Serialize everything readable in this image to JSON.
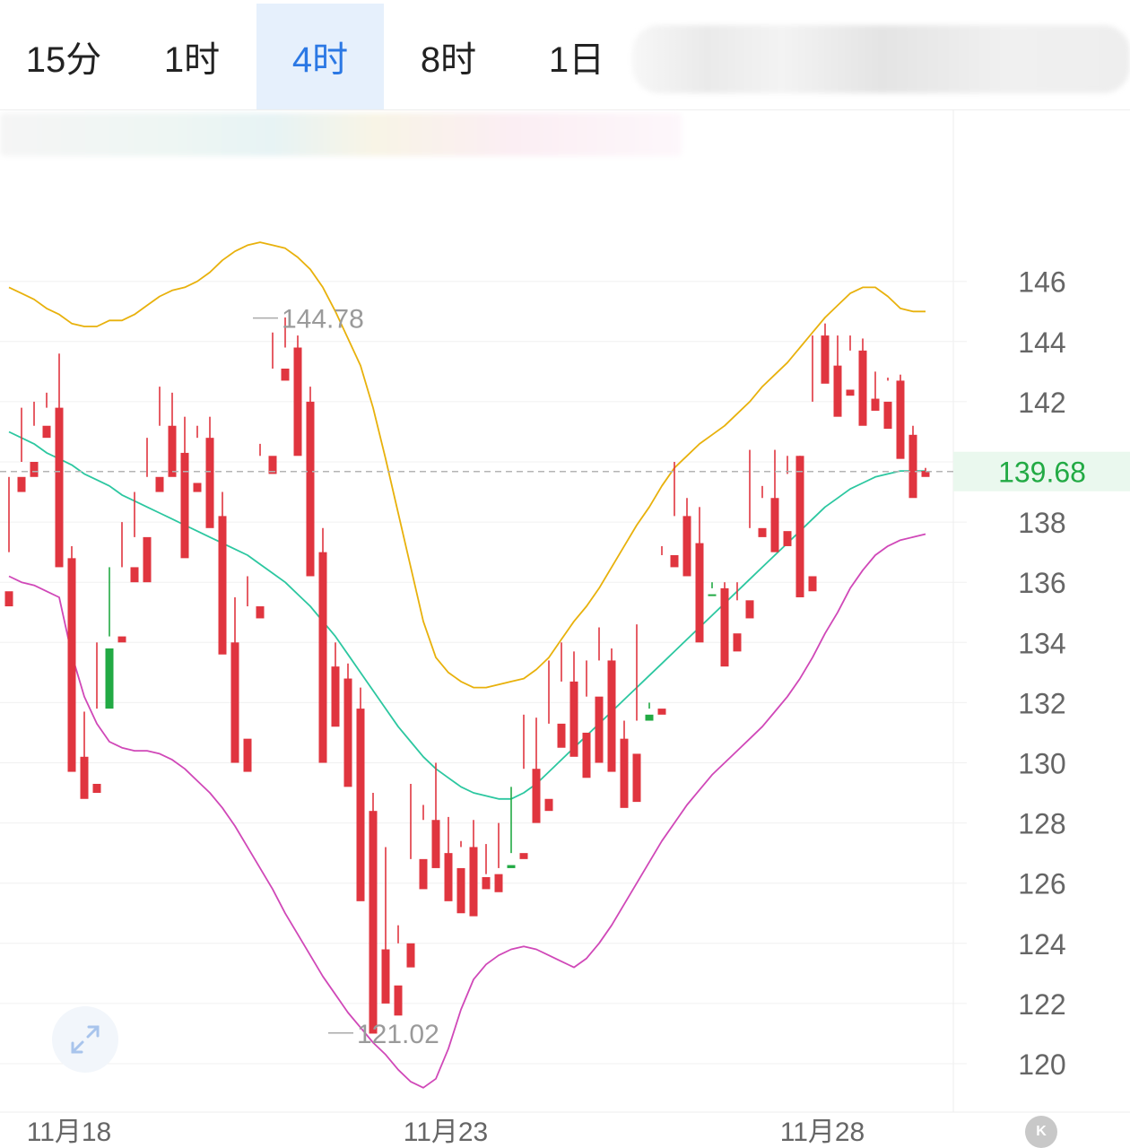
{
  "tabs": [
    {
      "label": "15分",
      "active": false
    },
    {
      "label": "1时",
      "active": false
    },
    {
      "label": "4时",
      "active": true
    },
    {
      "label": "8时",
      "active": false
    },
    {
      "label": "1日",
      "active": false
    }
  ],
  "colors": {
    "up": "#22aa44",
    "down": "#e0353f",
    "upper_band": "#e8b10c",
    "middle_band": "#2cc7a0",
    "lower_band": "#d048b8",
    "grid": "#f0f0f0",
    "axis_text": "#666666",
    "current_price": "#22aa44",
    "current_price_bg": "#eaf8ee",
    "active_tab": "#2b78e4"
  },
  "icons": {
    "expand": "expand-arrows-icon",
    "kline_badge": "k-icon"
  },
  "kline_badge": "K",
  "chart_data": {
    "type": "candlestick",
    "ylim": [
      119,
      148
    ],
    "y_ticks": [
      146,
      144,
      142,
      140,
      138,
      136,
      134,
      132,
      130,
      128,
      126,
      124,
      122,
      120
    ],
    "y_tick_labels_hidden": [
      140
    ],
    "x_labels": [
      {
        "label": "11月18",
        "index": 3
      },
      {
        "label": "11月23",
        "index": 33
      },
      {
        "label": "11月28",
        "index": 63
      }
    ],
    "current_price": 139.68,
    "current_price_label": "139.68",
    "high_marker": {
      "label": "144.78",
      "value": 144.78,
      "index": 19
    },
    "low_marker": {
      "label": "121.02",
      "value": 121.02,
      "index": 25
    },
    "candles": [
      [
        135.7,
        139.5,
        137.0,
        135.2
      ],
      [
        139.5,
        141.8,
        140.0,
        139.0
      ],
      [
        140.0,
        142.0,
        141.2,
        139.5
      ],
      [
        141.2,
        142.3,
        141.8,
        140.8
      ],
      [
        141.8,
        143.6,
        137.0,
        136.5
      ],
      [
        136.8,
        137.2,
        130.2,
        129.7
      ],
      [
        130.2,
        131.7,
        129.3,
        128.8
      ],
      [
        129.3,
        134.0,
        131.8,
        129.0
      ],
      [
        131.8,
        136.5,
        134.2,
        133.8
      ],
      [
        134.2,
        138.0,
        136.5,
        134.0
      ],
      [
        136.5,
        139.0,
        137.5,
        136.0
      ],
      [
        137.5,
        140.8,
        139.5,
        136.0
      ],
      [
        139.5,
        142.5,
        141.2,
        139.0
      ],
      [
        141.2,
        142.3,
        140.3,
        139.5
      ],
      [
        140.3,
        141.5,
        139.3,
        136.8
      ],
      [
        139.3,
        141.2,
        140.8,
        139.0
      ],
      [
        140.8,
        141.5,
        138.2,
        137.8
      ],
      [
        138.2,
        139.0,
        134.0,
        133.6
      ],
      [
        134.0,
        135.5,
        130.8,
        130.0
      ],
      [
        130.8,
        136.2,
        135.2,
        129.7
      ],
      [
        135.2,
        140.6,
        140.2,
        134.8
      ],
      [
        140.2,
        144.3,
        143.1,
        139.6
      ],
      [
        143.1,
        144.8,
        143.8,
        142.7
      ],
      [
        143.8,
        144.2,
        142.0,
        140.2
      ],
      [
        142.0,
        142.5,
        137.0,
        136.2
      ],
      [
        137.0,
        137.8,
        133.2,
        130.0
      ],
      [
        133.2,
        134.0,
        132.8,
        131.2
      ],
      [
        132.8,
        133.3,
        131.8,
        129.2
      ],
      [
        131.8,
        132.5,
        128.4,
        125.4
      ],
      [
        128.4,
        129.0,
        123.8,
        121.0
      ],
      [
        123.8,
        127.2,
        122.6,
        122.0
      ],
      [
        122.6,
        124.6,
        124.0,
        121.6
      ],
      [
        124.0,
        129.3,
        126.8,
        123.2
      ],
      [
        126.8,
        128.6,
        128.1,
        125.8
      ],
      [
        128.1,
        130.0,
        127.0,
        126.5
      ],
      [
        127.0,
        128.2,
        126.5,
        125.4
      ],
      [
        126.5,
        127.4,
        127.2,
        125.0
      ],
      [
        127.2,
        128.1,
        126.2,
        124.9
      ],
      [
        126.2,
        127.3,
        126.3,
        125.8
      ],
      [
        126.3,
        128.0,
        126.5,
        125.7
      ],
      [
        126.5,
        129.2,
        127.0,
        126.6
      ],
      [
        127.0,
        131.6,
        129.8,
        126.8
      ],
      [
        129.8,
        131.5,
        128.8,
        128.0
      ],
      [
        128.8,
        133.4,
        131.3,
        128.4
      ],
      [
        131.3,
        134.0,
        132.7,
        130.5
      ],
      [
        132.7,
        133.7,
        131.0,
        130.2
      ],
      [
        131.0,
        133.4,
        132.2,
        129.5
      ],
      [
        132.2,
        134.5,
        133.4,
        130.0
      ],
      [
        133.4,
        133.8,
        130.8,
        129.7
      ],
      [
        130.8,
        131.4,
        130.3,
        128.5
      ],
      [
        130.3,
        134.6,
        131.4,
        128.7
      ],
      [
        131.4,
        132.0,
        131.8,
        131.6
      ],
      [
        131.8,
        137.2,
        136.9,
        131.6
      ],
      [
        136.9,
        140.0,
        138.2,
        136.5
      ],
      [
        138.2,
        138.8,
        137.3,
        136.2
      ],
      [
        137.3,
        138.5,
        135.6,
        134.0
      ],
      [
        135.6,
        136.0,
        135.8,
        135.6
      ],
      [
        135.8,
        136.0,
        134.3,
        133.2
      ],
      [
        134.3,
        136.0,
        135.4,
        133.7
      ],
      [
        135.4,
        140.4,
        137.8,
        134.8
      ],
      [
        137.8,
        139.2,
        138.8,
        137.5
      ],
      [
        138.8,
        140.4,
        137.7,
        137.0
      ],
      [
        137.7,
        139.6,
        140.2,
        137.2
      ],
      [
        140.2,
        140.2,
        136.2,
        135.5
      ],
      [
        136.2,
        142.0,
        144.2,
        135.7
      ],
      [
        144.2,
        144.6,
        143.2,
        142.6
      ],
      [
        143.2,
        144.2,
        142.4,
        141.5
      ],
      [
        142.4,
        144.2,
        143.7,
        142.2
      ],
      [
        143.7,
        144.1,
        142.1,
        141.2
      ],
      [
        142.1,
        143.0,
        142.0,
        141.7
      ],
      [
        142.0,
        142.8,
        142.7,
        141.1
      ],
      [
        142.7,
        142.9,
        140.9,
        140.1
      ],
      [
        140.9,
        141.2,
        139.7,
        138.8
      ],
      [
        139.7,
        139.8,
        139.7,
        139.5
      ]
    ],
    "bands": {
      "upper": [
        145.8,
        145.6,
        145.4,
        145.1,
        144.9,
        144.6,
        144.5,
        144.5,
        144.7,
        144.7,
        144.9,
        145.2,
        145.5,
        145.7,
        145.8,
        146.0,
        146.3,
        146.7,
        147.0,
        147.2,
        147.3,
        147.2,
        147.1,
        146.8,
        146.4,
        145.8,
        145.0,
        144.1,
        143.2,
        141.8,
        140.1,
        138.3,
        136.5,
        134.7,
        133.5,
        133.0,
        132.7,
        132.5,
        132.5,
        132.6,
        132.7,
        132.8,
        133.1,
        133.5,
        134.1,
        134.7,
        135.2,
        135.8,
        136.5,
        137.2,
        137.9,
        138.5,
        139.2,
        139.8,
        140.2,
        140.6,
        140.9,
        141.2,
        141.6,
        142.0,
        142.5,
        142.9,
        143.3,
        143.8,
        144.3,
        144.8,
        145.2,
        145.6,
        145.8,
        145.8,
        145.5,
        145.1,
        145.0,
        145.0
      ],
      "middle": [
        141.0,
        140.8,
        140.6,
        140.3,
        140.1,
        139.9,
        139.6,
        139.4,
        139.2,
        138.9,
        138.7,
        138.5,
        138.3,
        138.1,
        137.9,
        137.7,
        137.5,
        137.3,
        137.1,
        136.9,
        136.6,
        136.3,
        136.0,
        135.6,
        135.2,
        134.7,
        134.2,
        133.6,
        133.0,
        132.4,
        131.8,
        131.2,
        130.7,
        130.2,
        129.8,
        129.5,
        129.2,
        129.0,
        128.9,
        128.8,
        128.8,
        129.0,
        129.3,
        129.7,
        130.1,
        130.5,
        130.9,
        131.3,
        131.7,
        132.1,
        132.5,
        132.9,
        133.3,
        133.7,
        134.1,
        134.5,
        134.9,
        135.3,
        135.7,
        136.1,
        136.5,
        136.9,
        137.3,
        137.7,
        138.1,
        138.5,
        138.8,
        139.1,
        139.3,
        139.5,
        139.6,
        139.7,
        139.7,
        139.7
      ],
      "lower": [
        136.2,
        136.0,
        135.9,
        135.7,
        135.5,
        133.6,
        132.2,
        131.3,
        130.7,
        130.5,
        130.4,
        130.4,
        130.3,
        130.1,
        129.8,
        129.4,
        129.0,
        128.5,
        127.9,
        127.2,
        126.5,
        125.8,
        125.0,
        124.3,
        123.6,
        122.9,
        122.3,
        121.7,
        121.2,
        120.7,
        120.3,
        119.8,
        119.4,
        119.2,
        119.5,
        120.5,
        121.8,
        122.8,
        123.3,
        123.6,
        123.8,
        123.9,
        123.8,
        123.6,
        123.4,
        123.2,
        123.5,
        124.0,
        124.6,
        125.3,
        126.0,
        126.7,
        127.4,
        128.0,
        128.6,
        129.1,
        129.6,
        130.0,
        130.4,
        130.8,
        131.2,
        131.7,
        132.2,
        132.8,
        133.5,
        134.3,
        135.0,
        135.8,
        136.4,
        136.9,
        137.2,
        137.4,
        137.5,
        137.6
      ]
    }
  }
}
